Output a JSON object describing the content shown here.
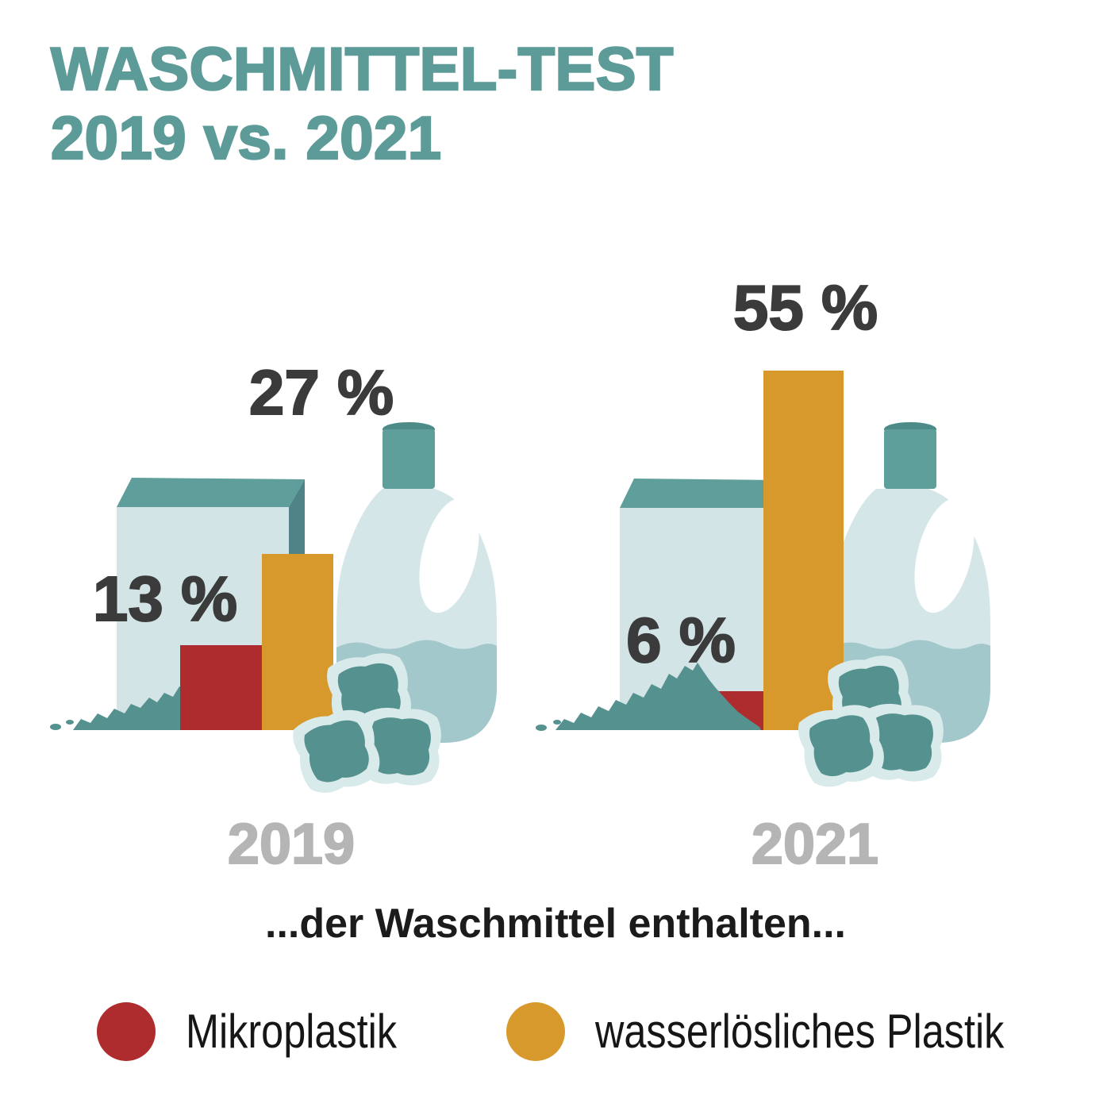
{
  "title": {
    "line1": "WASCHMITTEL-TEST",
    "line2": "2019 vs. 2021"
  },
  "subtitle": "...der Waschmittel enthalten...",
  "groups": [
    {
      "year": "2019",
      "microplastic": {
        "value": 13,
        "label": "13 %"
      },
      "soluble": {
        "value": 27,
        "label": "27 %"
      }
    },
    {
      "year": "2021",
      "microplastic": {
        "value": 6,
        "label": "6 %"
      },
      "soluble": {
        "value": 55,
        "label": "55 %"
      }
    }
  ],
  "legend": [
    {
      "label": "Mikroplastik",
      "color": "#AE2B2E"
    },
    {
      "label": "wasserlösliches Plastik",
      "color": "#D8992C"
    }
  ],
  "colors": {
    "microplastic": "#AE2B2E",
    "soluble": "#D8992C",
    "title_teal": "#5C9B98",
    "box_front": "#D2E4E6",
    "box_top": "#5F9E9A",
    "box_side": "#508387",
    "powder": "#55928F",
    "bottle_body": "#D4E6E8",
    "bottle_liquid": "#A3C8CB",
    "bottle_cap": "#5E9E9B",
    "pod_outer": "#D9EAEB",
    "pod_inner": "#55928F",
    "value_text": "#3B3B3B",
    "year_text": "#B5B5B5",
    "body_text": "#1B1B1B"
  },
  "chart_data": {
    "type": "bar",
    "title": "WASCHMITTEL-TEST 2019 vs. 2021",
    "subtitle": "...der Waschmittel enthalten...",
    "categories": [
      "2019",
      "2021"
    ],
    "series": [
      {
        "name": "Mikroplastik",
        "values": [
          13,
          6
        ],
        "color": "#AE2B2E"
      },
      {
        "name": "wasserlösliches Plastik",
        "values": [
          27,
          55
        ],
        "color": "#D8992C"
      }
    ],
    "unit": "%",
    "ylim": [
      0,
      60
    ],
    "grid": false,
    "legend_position": "bottom",
    "data_labels": [
      "13 %",
      "27 %",
      "6 %",
      "55 %"
    ]
  }
}
